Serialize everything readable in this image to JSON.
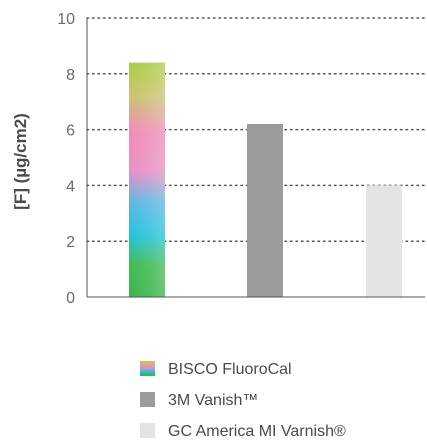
{
  "chart_data": {
    "type": "bar",
    "title": "",
    "xlabel": "",
    "ylabel": "[F] (µg/cm2)",
    "ylim": [
      0,
      10
    ],
    "yticks": [
      "0",
      "2",
      "4",
      "6",
      "8",
      "10"
    ],
    "grid": true,
    "legend_position": "bottom",
    "categories": [
      "BISCO FluoroCal",
      "3M Vanish™",
      "GC America MI Varnish®"
    ],
    "values": [
      8.4,
      6.2,
      4.0
    ],
    "colors": [
      "gradient",
      "#9b9b9b",
      "#e4e4e4"
    ],
    "legend": [
      {
        "label": "BISCO FluoroCal",
        "swatch": "gradient"
      },
      {
        "label": "3M Vanish™",
        "swatch": "#9b9b9b"
      },
      {
        "label": "GC America MI Varnish®",
        "swatch": "#e4e4e4"
      }
    ]
  }
}
